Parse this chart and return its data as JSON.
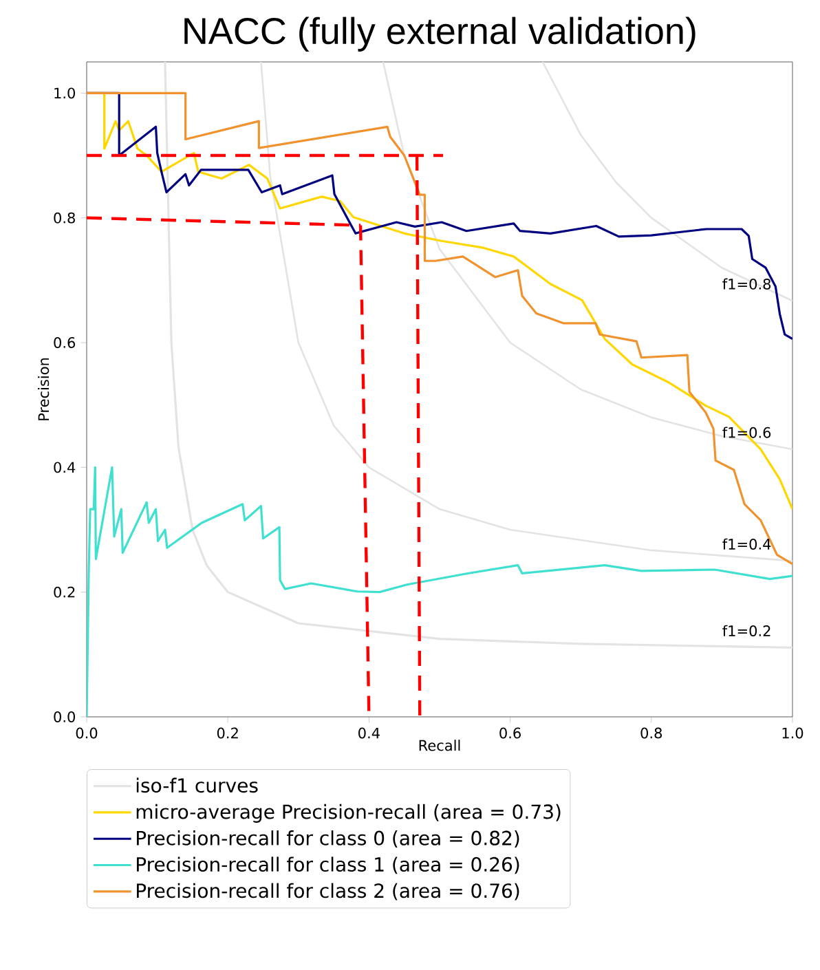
{
  "chart_data": {
    "type": "line",
    "title": "NACC (fully external validation)",
    "xlabel": "Recall",
    "ylabel": "Precision",
    "xlim": [
      0,
      1
    ],
    "ylim": [
      0,
      1.05
    ],
    "xticks": [
      {
        "value": 0,
        "label": "0.0"
      },
      0.2,
      0.4,
      0.6,
      0.8,
      {
        "value": 1,
        "label": "1.0"
      }
    ],
    "yticks": [
      {
        "value": 0,
        "label": "0.0"
      },
      0.2,
      0.4,
      0.6,
      0.8,
      {
        "value": 1,
        "label": "1.0"
      }
    ],
    "legend": "bottom",
    "marker": "none",
    "series": [
      {
        "name": "iso-f1 curves",
        "color": "#e3e3e3",
        "x": [
          0.111,
          0.12,
          0.13,
          0.15,
          0.17,
          0.2,
          0.3,
          0.5,
          0.7,
          1.0
        ],
        "values": [
          1.05,
          0.6,
          0.433,
          0.3,
          0.243,
          0.2,
          0.15,
          0.125,
          0.117,
          0.111
        ]
      },
      {
        "color": "#e3e3e3",
        "x": [
          0.247,
          0.26,
          0.3,
          0.35,
          0.4,
          0.5,
          0.6,
          0.8,
          1.0
        ],
        "values": [
          1.05,
          0.867,
          0.6,
          0.467,
          0.4,
          0.333,
          0.3,
          0.267,
          0.25
        ]
      },
      {
        "color": "#e3e3e3",
        "x": [
          0.42,
          0.45,
          0.5,
          0.6,
          0.7,
          0.8,
          0.9,
          1.0
        ],
        "values": [
          1.05,
          0.9,
          0.75,
          0.6,
          0.525,
          0.48,
          0.45,
          0.429
        ]
      },
      {
        "color": "#e3e3e3",
        "x": [
          0.646,
          0.7,
          0.75,
          0.8,
          0.9,
          1.0
        ],
        "values": [
          1.05,
          0.933,
          0.857,
          0.8,
          0.72,
          0.667
        ]
      },
      {
        "name": "micro-average Precision-recall (area = 0.73)",
        "color": "#ffd700",
        "x": [
          0,
          0.025,
          0.025,
          0.041,
          0.046,
          0.059,
          0.072,
          0.085,
          0.106,
          0.152,
          0.158,
          0.191,
          0.23,
          0.256,
          0.274,
          0.333,
          0.359,
          0.378,
          0.45,
          0.503,
          0.562,
          0.605,
          0.657,
          0.702,
          0.734,
          0.773,
          0.825,
          0.877,
          0.91,
          0.955,
          0.982,
          1.0
        ],
        "values": [
          1.0,
          1.0,
          0.911,
          0.955,
          0.94,
          0.955,
          0.911,
          0.9,
          0.874,
          0.904,
          0.874,
          0.863,
          0.885,
          0.863,
          0.815,
          0.834,
          0.827,
          0.801,
          0.775,
          0.763,
          0.752,
          0.738,
          0.694,
          0.668,
          0.606,
          0.565,
          0.536,
          0.499,
          0.481,
          0.429,
          0.381,
          0.333
        ]
      },
      {
        "name": "Precision-recall for class 0 (area = 0.82)",
        "color": "#000080",
        "x": [
          0,
          0.046,
          0.046,
          0.098,
          0.1,
          0.106,
          0.113,
          0.14,
          0.145,
          0.162,
          0.229,
          0.248,
          0.274,
          0.277,
          0.348,
          0.351,
          0.381,
          0.39,
          0.439,
          0.465,
          0.503,
          0.538,
          0.605,
          0.614,
          0.657,
          0.722,
          0.754,
          0.8,
          0.878,
          0.928,
          0.938,
          0.943,
          0.962,
          0.976,
          0.982,
          0.989,
          1.0
        ],
        "values": [
          1.0,
          1.0,
          0.9,
          0.946,
          0.904,
          0.874,
          0.841,
          0.87,
          0.852,
          0.877,
          0.877,
          0.841,
          0.852,
          0.838,
          0.868,
          0.838,
          0.775,
          0.778,
          0.793,
          0.786,
          0.793,
          0.779,
          0.791,
          0.779,
          0.775,
          0.787,
          0.77,
          0.772,
          0.782,
          0.782,
          0.771,
          0.734,
          0.72,
          0.69,
          0.646,
          0.613,
          0.606
        ]
      },
      {
        "name": "Precision-recall for class 1 (area = 0.26)",
        "color": "#40e0d0",
        "x": [
          0,
          0.003,
          0.005,
          0.01,
          0.012,
          0.013,
          0.036,
          0.039,
          0.049,
          0.051,
          0.085,
          0.088,
          0.098,
          0.101,
          0.111,
          0.114,
          0.163,
          0.221,
          0.224,
          0.247,
          0.25,
          0.273,
          0.274,
          0.281,
          0.318,
          0.383,
          0.415,
          0.454,
          0.54,
          0.611,
          0.617,
          0.734,
          0.786,
          0.89,
          0.968,
          1.0
        ],
        "values": [
          0,
          0.238,
          0.333,
          0.333,
          0.4,
          0.253,
          0.4,
          0.289,
          0.333,
          0.263,
          0.344,
          0.311,
          0.333,
          0.282,
          0.3,
          0.271,
          0.311,
          0.341,
          0.315,
          0.338,
          0.286,
          0.304,
          0.219,
          0.205,
          0.214,
          0.201,
          0.2,
          0.212,
          0.23,
          0.243,
          0.23,
          0.243,
          0.234,
          0.236,
          0.221,
          0.226
        ]
      },
      {
        "name": "Precision-recall for class 2 (area = 0.76)",
        "color": "#f0922e",
        "x": [
          0,
          0.14,
          0.14,
          0.244,
          0.244,
          0.426,
          0.43,
          0.45,
          0.472,
          0.479,
          0.479,
          0.494,
          0.533,
          0.579,
          0.611,
          0.617,
          0.637,
          0.676,
          0.721,
          0.727,
          0.779,
          0.786,
          0.851,
          0.854,
          0.877,
          0.888,
          0.891,
          0.917,
          0.932,
          0.955,
          0.978,
          1.0
        ],
        "values": [
          1.0,
          1.0,
          0.926,
          0.955,
          0.912,
          0.946,
          0.93,
          0.9,
          0.837,
          0.837,
          0.731,
          0.731,
          0.738,
          0.705,
          0.716,
          0.675,
          0.647,
          0.631,
          0.631,
          0.613,
          0.602,
          0.576,
          0.58,
          0.521,
          0.488,
          0.462,
          0.411,
          0.396,
          0.341,
          0.315,
          0.26,
          0.245
        ]
      },
      {
        "color": "#ff0000",
        "line_style": "dashed",
        "x": [
          0,
          0.388
        ],
        "values": [
          0.8,
          0.788
        ]
      },
      {
        "color": "#ff0000",
        "line_style": "dashed",
        "x": [
          0.388,
          0.4
        ],
        "values": [
          0.788,
          0
        ]
      },
      {
        "color": "#ff0000",
        "line_style": "dashed",
        "x": [
          0,
          0.505
        ],
        "values": [
          0.9,
          0.9
        ]
      },
      {
        "color": "#ff0000",
        "line_style": "dashed",
        "x": [
          0.468,
          0.472
        ],
        "values": [
          0.9,
          0
        ]
      }
    ],
    "annotations": [
      "f1=0.2",
      "f1=0.4",
      "f1=0.6",
      "f1=0.8"
    ]
  }
}
